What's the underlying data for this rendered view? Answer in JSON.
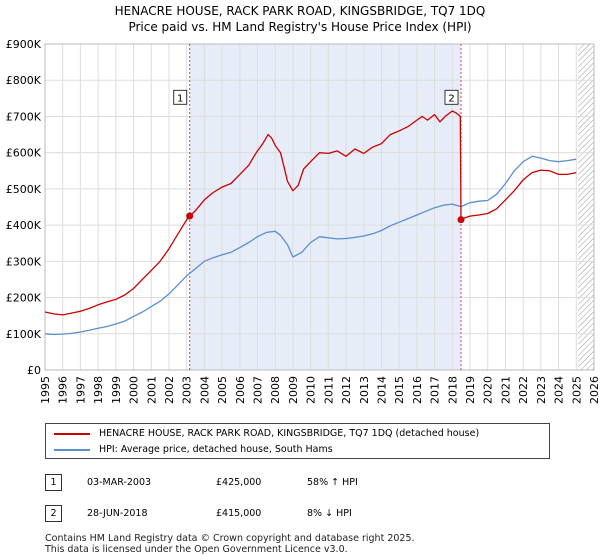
{
  "title_line1": "HENACRE HOUSE, RACK PARK ROAD, KINGSBRIDGE, TQ7 1DQ",
  "title_line2": "Price paid vs. HM Land Registry's House Price Index (HPI)",
  "colors": {
    "property": "#cc0000",
    "hpi": "#5a8fd0",
    "shade": "#e6ecf8",
    "grid": "#dddddd",
    "marker_line": "#dd4444"
  },
  "chart_data": {
    "type": "line",
    "x_range": [
      1995,
      2026
    ],
    "ylim": [
      0,
      900000
    ],
    "y_ticks": [
      {
        "value": 0,
        "label": "£0"
      },
      {
        "value": 100000,
        "label": "£100K"
      },
      {
        "value": 200000,
        "label": "£200K"
      },
      {
        "value": 300000,
        "label": "£300K"
      },
      {
        "value": 400000,
        "label": "£400K"
      },
      {
        "value": 500000,
        "label": "£500K"
      },
      {
        "value": 600000,
        "label": "£600K"
      },
      {
        "value": 700000,
        "label": "£700K"
      },
      {
        "value": 800000,
        "label": "£800K"
      },
      {
        "value": 900000,
        "label": "£900K"
      }
    ],
    "x_ticks": [
      "1995",
      "1996",
      "1997",
      "1998",
      "1999",
      "2000",
      "2001",
      "2002",
      "2003",
      "2004",
      "2005",
      "2006",
      "2007",
      "2008",
      "2009",
      "2010",
      "2011",
      "2012",
      "2013",
      "2014",
      "2015",
      "2016",
      "2017",
      "2018",
      "2019",
      "2020",
      "2021",
      "2022",
      "2023",
      "2024",
      "2025",
      "2026"
    ],
    "shaded_span": [
      2003.17,
      2018.49
    ],
    "hatch_from": 2025.1,
    "series": [
      {
        "name": "HENACRE HOUSE, RACK PARK ROAD, KINGSBRIDGE, TQ7 1DQ (detached house)",
        "color": "#cc0000",
        "points": [
          [
            1995.0,
            160000
          ],
          [
            1995.5,
            155000
          ],
          [
            1996.0,
            152000
          ],
          [
            1996.5,
            157000
          ],
          [
            1997.0,
            162000
          ],
          [
            1997.5,
            170000
          ],
          [
            1998.0,
            180000
          ],
          [
            1998.5,
            188000
          ],
          [
            1999.0,
            195000
          ],
          [
            1999.5,
            207000
          ],
          [
            2000.0,
            225000
          ],
          [
            2000.5,
            250000
          ],
          [
            2001.0,
            275000
          ],
          [
            2001.5,
            300000
          ],
          [
            2002.0,
            335000
          ],
          [
            2002.5,
            375000
          ],
          [
            2003.0,
            415000
          ],
          [
            2003.17,
            425000
          ],
          [
            2003.5,
            440000
          ],
          [
            2004.0,
            470000
          ],
          [
            2004.5,
            490000
          ],
          [
            2005.0,
            505000
          ],
          [
            2005.5,
            515000
          ],
          [
            2006.0,
            540000
          ],
          [
            2006.5,
            565000
          ],
          [
            2006.8,
            590000
          ],
          [
            2007.0,
            605000
          ],
          [
            2007.3,
            625000
          ],
          [
            2007.6,
            650000
          ],
          [
            2007.8,
            640000
          ],
          [
            2008.0,
            620000
          ],
          [
            2008.3,
            600000
          ],
          [
            2008.5,
            560000
          ],
          [
            2008.7,
            520000
          ],
          [
            2009.0,
            495000
          ],
          [
            2009.3,
            510000
          ],
          [
            2009.6,
            555000
          ],
          [
            2010.0,
            575000
          ],
          [
            2010.5,
            600000
          ],
          [
            2011.0,
            598000
          ],
          [
            2011.5,
            605000
          ],
          [
            2012.0,
            590000
          ],
          [
            2012.5,
            610000
          ],
          [
            2013.0,
            598000
          ],
          [
            2013.5,
            615000
          ],
          [
            2014.0,
            625000
          ],
          [
            2014.5,
            650000
          ],
          [
            2015.0,
            660000
          ],
          [
            2015.5,
            672000
          ],
          [
            2016.0,
            690000
          ],
          [
            2016.3,
            700000
          ],
          [
            2016.6,
            690000
          ],
          [
            2017.0,
            705000
          ],
          [
            2017.3,
            685000
          ],
          [
            2017.6,
            700000
          ],
          [
            2018.0,
            715000
          ],
          [
            2018.2,
            710000
          ],
          [
            2018.45,
            700000
          ],
          [
            2018.49,
            415000
          ],
          [
            2018.7,
            420000
          ],
          [
            2019.0,
            425000
          ],
          [
            2019.5,
            428000
          ],
          [
            2020.0,
            432000
          ],
          [
            2020.5,
            445000
          ],
          [
            2021.0,
            470000
          ],
          [
            2021.5,
            495000
          ],
          [
            2022.0,
            525000
          ],
          [
            2022.5,
            545000
          ],
          [
            2023.0,
            552000
          ],
          [
            2023.5,
            550000
          ],
          [
            2024.0,
            540000
          ],
          [
            2024.5,
            540000
          ],
          [
            2025.0,
            545000
          ]
        ]
      },
      {
        "name": "HPI: Average price, detached house, South Hams",
        "color": "#5a8fd0",
        "points": [
          [
            1995.0,
            100000
          ],
          [
            1995.5,
            98000
          ],
          [
            1996.0,
            99000
          ],
          [
            1996.5,
            101000
          ],
          [
            1997.0,
            105000
          ],
          [
            1997.5,
            110000
          ],
          [
            1998.0,
            115000
          ],
          [
            1998.5,
            120000
          ],
          [
            1999.0,
            127000
          ],
          [
            1999.5,
            135000
          ],
          [
            2000.0,
            148000
          ],
          [
            2000.5,
            160000
          ],
          [
            2001.0,
            175000
          ],
          [
            2001.5,
            190000
          ],
          [
            2002.0,
            210000
          ],
          [
            2002.5,
            235000
          ],
          [
            2003.0,
            260000
          ],
          [
            2003.5,
            280000
          ],
          [
            2004.0,
            300000
          ],
          [
            2004.5,
            310000
          ],
          [
            2005.0,
            318000
          ],
          [
            2005.5,
            325000
          ],
          [
            2006.0,
            338000
          ],
          [
            2006.5,
            352000
          ],
          [
            2007.0,
            368000
          ],
          [
            2007.5,
            380000
          ],
          [
            2008.0,
            383000
          ],
          [
            2008.3,
            372000
          ],
          [
            2008.7,
            345000
          ],
          [
            2009.0,
            312000
          ],
          [
            2009.5,
            325000
          ],
          [
            2010.0,
            352000
          ],
          [
            2010.5,
            368000
          ],
          [
            2011.0,
            365000
          ],
          [
            2011.5,
            362000
          ],
          [
            2012.0,
            363000
          ],
          [
            2012.5,
            366000
          ],
          [
            2013.0,
            370000
          ],
          [
            2013.5,
            376000
          ],
          [
            2014.0,
            385000
          ],
          [
            2014.5,
            398000
          ],
          [
            2015.0,
            408000
          ],
          [
            2015.5,
            418000
          ],
          [
            2016.0,
            428000
          ],
          [
            2016.5,
            438000
          ],
          [
            2017.0,
            448000
          ],
          [
            2017.5,
            455000
          ],
          [
            2018.0,
            458000
          ],
          [
            2018.49,
            451000
          ],
          [
            2019.0,
            462000
          ],
          [
            2019.5,
            466000
          ],
          [
            2020.0,
            468000
          ],
          [
            2020.5,
            485000
          ],
          [
            2021.0,
            515000
          ],
          [
            2021.5,
            550000
          ],
          [
            2022.0,
            575000
          ],
          [
            2022.5,
            590000
          ],
          [
            2023.0,
            585000
          ],
          [
            2023.5,
            578000
          ],
          [
            2024.0,
            575000
          ],
          [
            2024.5,
            578000
          ],
          [
            2025.0,
            582000
          ]
        ]
      }
    ],
    "sales": [
      {
        "label": "1",
        "year": 2003.17,
        "price": 425000
      },
      {
        "label": "2",
        "year": 2018.49,
        "price": 415000
      }
    ],
    "sale_box_value": 750000
  },
  "legend": {
    "property_label": "HENACRE HOUSE, RACK PARK ROAD, KINGSBRIDGE, TQ7 1DQ (detached house)",
    "hpi_label": "HPI: Average price, detached house, South Hams"
  },
  "transactions": [
    {
      "num": "1",
      "date": "03-MAR-2003",
      "price": "£425,000",
      "hpi": "58% ↑ HPI"
    },
    {
      "num": "2",
      "date": "28-JUN-2018",
      "price": "£415,000",
      "hpi": "8% ↓ HPI"
    }
  ],
  "footer": {
    "line1": "Contains HM Land Registry data © Crown copyright and database right 2025.",
    "line2": "This data is licensed under the Open Government Licence v3.0."
  }
}
